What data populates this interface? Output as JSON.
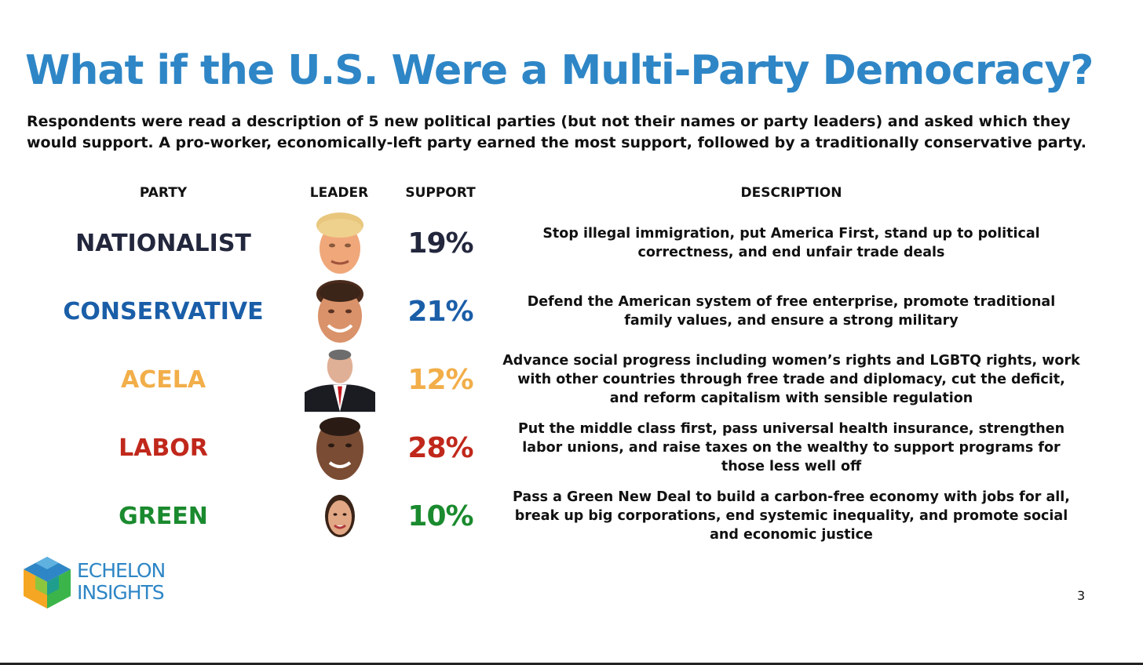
{
  "title": "What if the U.S. Were a Multi-Party Democracy?",
  "subtitle": "Respondents were read a description of 5 new political parties (but not their names or party leaders) and asked which they would support. A pro-worker, economically-left party earned the most support, followed by a traditionally conservative party.",
  "columns": {
    "party": "PARTY",
    "leader": "LEADER",
    "support": "SUPPORT",
    "description": "DESCRIPTION"
  },
  "parties": [
    {
      "name": "NATIONALIST",
      "support": "19%",
      "support_value": 19,
      "color": "#23273d",
      "leader_icon": "leader-portrait-photo",
      "description": "Stop illegal immigration, put America First, stand up to political correctness, and end unfair trade deals"
    },
    {
      "name": "CONSERVATIVE",
      "support": "21%",
      "support_value": 21,
      "color": "#1a5ea8",
      "leader_icon": "leader-portrait-photo",
      "description": "Defend the American system of free enterprise, promote traditional family values, and ensure a strong military"
    },
    {
      "name": "ACELA",
      "support": "12%",
      "support_value": 12,
      "color": "#f2ae49",
      "leader_icon": "leader-portrait-photo",
      "description": "Advance social progress including women’s rights and LGBTQ rights, work with other countries through free trade and diplomacy, cut the deficit, and reform capitalism with sensible regulation"
    },
    {
      "name": "LABOR",
      "support": "28%",
      "support_value": 28,
      "color": "#c0281b",
      "leader_icon": "leader-portrait-photo",
      "description": "Put the middle class first, pass universal health insurance, strengthen labor unions, and raise taxes on the wealthy to support programs for those less well off"
    },
    {
      "name": "GREEN",
      "support": "10%",
      "support_value": 10,
      "color": "#1a8a2e",
      "leader_icon": "leader-portrait-photo",
      "description": "Pass a Green New Deal to build a carbon-free economy with jobs for all, break up big corporations, end systemic inequality, and promote social and economic justice"
    }
  ],
  "logo": {
    "line1": "ECHELON",
    "line2": "INSIGHTS"
  },
  "page_number": "3",
  "colors": {
    "title": "#2e86c6",
    "text": "#111111"
  }
}
